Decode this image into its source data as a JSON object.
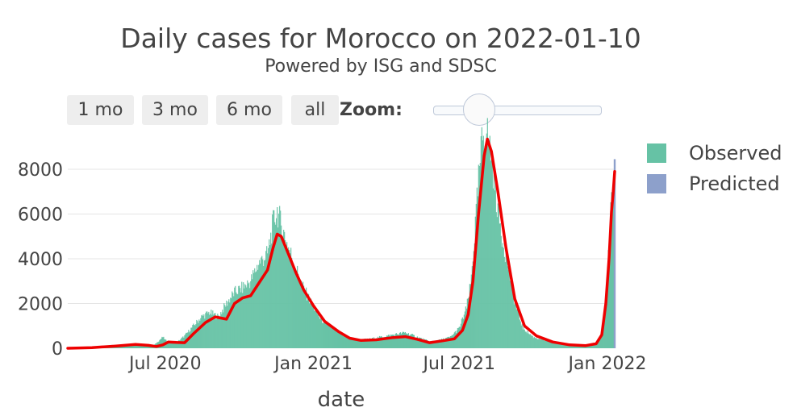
{
  "title": "Daily cases for Morocco on 2022-01-10",
  "subtitle": "Powered by ISG and SDSC",
  "range_selector": {
    "buttons": [
      "1 mo",
      "3 mo",
      "6 mo",
      "all"
    ],
    "zoom_label": "Zoom:"
  },
  "legend": {
    "observed": "Observed",
    "predicted": "Predicted"
  },
  "colors": {
    "observed": "#66c2a5",
    "predicted": "#8da0cb",
    "fit_line": "#ee0000",
    "grid": "#e5e5e5",
    "text": "#444444"
  },
  "chart_data": {
    "type": "bar",
    "title": "Daily cases for Morocco on 2022-01-10",
    "subtitle": "Powered by ISG and SDSC",
    "xlabel": "date",
    "ylabel": "",
    "x_range": [
      "2020-03-02",
      "2022-01-10"
    ],
    "ylim": [
      0,
      9800
    ],
    "y_ticks": [
      0,
      2000,
      4000,
      6000,
      8000
    ],
    "x_ticks": [
      {
        "date": "2020-07-01",
        "label": "Jul 2020"
      },
      {
        "date": "2021-01-01",
        "label": "Jan 2021"
      },
      {
        "date": "2021-07-01",
        "label": "Jul 2021"
      },
      {
        "date": "2022-01-01",
        "label": "Jan 2022"
      }
    ],
    "legend_position": "top-right",
    "grid": true,
    "series": [
      {
        "name": "Observed",
        "kind": "bars",
        "points": [
          [
            "2020-03-02",
            0
          ],
          [
            "2020-03-20",
            20
          ],
          [
            "2020-04-05",
            60
          ],
          [
            "2020-04-20",
            130
          ],
          [
            "2020-05-05",
            150
          ],
          [
            "2020-05-20",
            160
          ],
          [
            "2020-06-05",
            100
          ],
          [
            "2020-06-15",
            60
          ],
          [
            "2020-06-22",
            300
          ],
          [
            "2020-06-28",
            500
          ],
          [
            "2020-07-05",
            220
          ],
          [
            "2020-07-15",
            250
          ],
          [
            "2020-07-25",
            550
          ],
          [
            "2020-08-05",
            1000
          ],
          [
            "2020-08-15",
            1400
          ],
          [
            "2020-08-25",
            1600
          ],
          [
            "2020-09-05",
            1400
          ],
          [
            "2020-09-15",
            2000
          ],
          [
            "2020-09-25",
            2500
          ],
          [
            "2020-10-05",
            2700
          ],
          [
            "2020-10-15",
            3000
          ],
          [
            "2020-10-25",
            3800
          ],
          [
            "2020-11-05",
            4200
          ],
          [
            "2020-11-12",
            5600
          ],
          [
            "2020-11-17",
            6150
          ],
          [
            "2020-11-22",
            5500
          ],
          [
            "2020-11-30",
            4600
          ],
          [
            "2020-12-08",
            3800
          ],
          [
            "2020-12-18",
            2800
          ],
          [
            "2020-12-28",
            2100
          ],
          [
            "2021-01-10",
            1300
          ],
          [
            "2021-01-25",
            900
          ],
          [
            "2021-02-10",
            500
          ],
          [
            "2021-02-25",
            380
          ],
          [
            "2021-03-10",
            400
          ],
          [
            "2021-03-25",
            500
          ],
          [
            "2021-04-10",
            600
          ],
          [
            "2021-04-25",
            700
          ],
          [
            "2021-05-10",
            500
          ],
          [
            "2021-05-25",
            300
          ],
          [
            "2021-06-05",
            350
          ],
          [
            "2021-06-20",
            500
          ],
          [
            "2021-07-01",
            900
          ],
          [
            "2021-07-10",
            1800
          ],
          [
            "2021-07-15",
            2800
          ],
          [
            "2021-07-20",
            5000
          ],
          [
            "2021-07-25",
            7500
          ],
          [
            "2021-07-30",
            9500
          ],
          [
            "2021-08-04",
            9700
          ],
          [
            "2021-08-10",
            8600
          ],
          [
            "2021-08-15",
            7000
          ],
          [
            "2021-08-22",
            5200
          ],
          [
            "2021-08-30",
            3800
          ],
          [
            "2021-09-08",
            2000
          ],
          [
            "2021-09-18",
            900
          ],
          [
            "2021-10-01",
            500
          ],
          [
            "2021-10-20",
            300
          ],
          [
            "2021-11-10",
            150
          ],
          [
            "2021-12-01",
            120
          ],
          [
            "2021-12-15",
            150
          ],
          [
            "2021-12-24",
            500
          ],
          [
            "2021-12-29",
            2000
          ],
          [
            "2022-01-02",
            4000
          ],
          [
            "2022-01-05",
            6000
          ],
          [
            "2022-01-07",
            7100
          ],
          [
            "2022-01-09",
            7500
          ]
        ]
      },
      {
        "name": "Predicted",
        "kind": "bars",
        "points": [
          [
            "2022-01-10",
            8450
          ]
        ]
      },
      {
        "name": "",
        "kind": "line",
        "points": [
          [
            "2020-03-02",
            0
          ],
          [
            "2020-04-01",
            30
          ],
          [
            "2020-05-01",
            100
          ],
          [
            "2020-05-25",
            170
          ],
          [
            "2020-06-10",
            130
          ],
          [
            "2020-06-20",
            80
          ],
          [
            "2020-06-28",
            150
          ],
          [
            "2020-07-05",
            280
          ],
          [
            "2020-07-15",
            260
          ],
          [
            "2020-07-25",
            250
          ],
          [
            "2020-08-05",
            650
          ],
          [
            "2020-08-20",
            1150
          ],
          [
            "2020-09-01",
            1400
          ],
          [
            "2020-09-15",
            1300
          ],
          [
            "2020-09-25",
            2000
          ],
          [
            "2020-10-05",
            2250
          ],
          [
            "2020-10-15",
            2350
          ],
          [
            "2020-10-25",
            2900
          ],
          [
            "2020-11-05",
            3500
          ],
          [
            "2020-11-12",
            4500
          ],
          [
            "2020-11-17",
            5100
          ],
          [
            "2020-11-22",
            5000
          ],
          [
            "2020-11-30",
            4300
          ],
          [
            "2020-12-10",
            3400
          ],
          [
            "2020-12-20",
            2600
          ],
          [
            "2021-01-01",
            1900
          ],
          [
            "2021-01-15",
            1200
          ],
          [
            "2021-02-01",
            750
          ],
          [
            "2021-02-15",
            450
          ],
          [
            "2021-03-01",
            350
          ],
          [
            "2021-03-20",
            380
          ],
          [
            "2021-04-10",
            480
          ],
          [
            "2021-04-25",
            520
          ],
          [
            "2021-05-10",
            400
          ],
          [
            "2021-05-25",
            250
          ],
          [
            "2021-06-10",
            330
          ],
          [
            "2021-06-25",
            420
          ],
          [
            "2021-07-05",
            800
          ],
          [
            "2021-07-12",
            1500
          ],
          [
            "2021-07-18",
            3000
          ],
          [
            "2021-07-25",
            6000
          ],
          [
            "2021-08-01",
            8600
          ],
          [
            "2021-08-05",
            9350
          ],
          [
            "2021-08-10",
            8800
          ],
          [
            "2021-08-18",
            7000
          ],
          [
            "2021-08-28",
            4500
          ],
          [
            "2021-09-08",
            2200
          ],
          [
            "2021-09-20",
            1000
          ],
          [
            "2021-10-05",
            550
          ],
          [
            "2021-10-25",
            280
          ],
          [
            "2021-11-15",
            150
          ],
          [
            "2021-12-05",
            120
          ],
          [
            "2021-12-18",
            200
          ],
          [
            "2021-12-25",
            600
          ],
          [
            "2021-12-30",
            2000
          ],
          [
            "2022-01-03",
            4000
          ],
          [
            "2022-01-06",
            6100
          ],
          [
            "2022-01-08",
            6900
          ],
          [
            "2022-01-10",
            7900
          ]
        ]
      }
    ]
  }
}
